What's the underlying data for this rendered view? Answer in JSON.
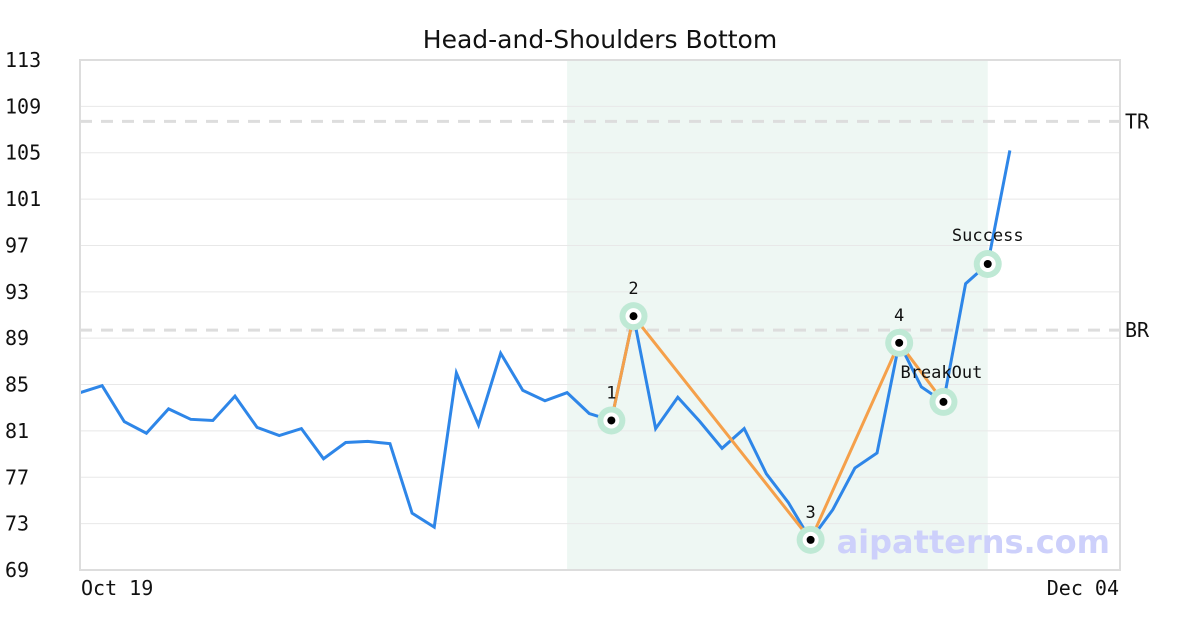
{
  "chart_data": {
    "type": "line",
    "title": "Head-and-Shoulders Bottom",
    "x_tick_labels": [
      "Oct 19",
      "Dec 04"
    ],
    "ylim": [
      69,
      113
    ],
    "y_ticks": [
      113,
      109,
      105,
      101,
      97,
      93,
      89,
      85,
      81,
      77,
      73,
      69
    ],
    "grid": true,
    "values": [
      84.3,
      84.9,
      81.8,
      80.8,
      82.9,
      82.0,
      81.9,
      84.0,
      81.3,
      80.6,
      81.2,
      78.6,
      80.0,
      80.1,
      79.9,
      73.9,
      72.7,
      86.0,
      81.5,
      87.7,
      84.5,
      83.6,
      84.3,
      82.5,
      81.9,
      90.9,
      81.2,
      83.9,
      81.8,
      79.5,
      81.2,
      77.3,
      74.8,
      71.6,
      74.2,
      77.8,
      79.1,
      88.6,
      84.8,
      83.5,
      93.7,
      95.4,
      105.2
    ],
    "reference_lines": [
      {
        "label": "TR",
        "value": 107.7
      },
      {
        "label": "BR",
        "value": 89.7
      }
    ],
    "highlight_range": {
      "start_index": 22,
      "end_index": 41
    },
    "pattern_points": [
      {
        "label": "1",
        "index": 24,
        "value": 81.9
      },
      {
        "label": "2",
        "index": 25,
        "value": 90.9
      },
      {
        "label": "3",
        "index": 33,
        "value": 71.6
      },
      {
        "label": "4",
        "index": 37,
        "value": 88.6
      },
      {
        "label": "BreakOut",
        "index": 39,
        "value": 83.5
      },
      {
        "label": "Success",
        "index": 41,
        "value": 95.4
      }
    ],
    "colors": {
      "series": "#2e86e8",
      "pattern": "#f5a04a",
      "highlight": "#eef7f3",
      "marker_halo": "#bfe9d5",
      "reference": "#dddddd"
    }
  },
  "watermark": "aipatterns.com"
}
